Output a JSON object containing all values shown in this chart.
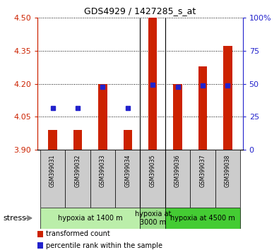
{
  "title": "GDS4929 / 1427285_s_at",
  "samples": [
    "GSM399031",
    "GSM399032",
    "GSM399033",
    "GSM399034",
    "GSM399035",
    "GSM399036",
    "GSM399037",
    "GSM399038"
  ],
  "bar_base": 3.9,
  "bar_tops": [
    3.99,
    3.99,
    4.2,
    3.99,
    4.5,
    4.2,
    4.28,
    4.37
  ],
  "blue_dot_values": [
    4.09,
    4.09,
    4.185,
    4.09,
    4.197,
    4.185,
    4.191,
    4.191
  ],
  "ylim": [
    3.9,
    4.5
  ],
  "yticks": [
    3.9,
    4.05,
    4.2,
    4.35,
    4.5
  ],
  "right_ylim": [
    0,
    100
  ],
  "right_yticks": [
    0,
    25,
    50,
    75,
    100
  ],
  "right_yticklabels": [
    "0",
    "25",
    "50",
    "75",
    "100%"
  ],
  "bar_color": "#cc2200",
  "dot_color": "#2222cc",
  "groups": [
    {
      "label": "hypoxia at 1400 m",
      "samples": [
        0,
        1,
        2,
        3
      ],
      "color": "#bbeeaa"
    },
    {
      "label": "hypoxia at\n3000 m",
      "samples": [
        4
      ],
      "color": "#99dd88"
    },
    {
      "label": "hypoxia at 4500 m",
      "samples": [
        5,
        6,
        7
      ],
      "color": "#44cc33"
    }
  ],
  "stress_label": "stress",
  "legend_items": [
    {
      "color": "#cc2200",
      "label": "transformed count"
    },
    {
      "color": "#2222cc",
      "label": "percentile rank within the sample"
    }
  ],
  "bg_color": "#ffffff",
  "tick_color_left": "#cc2200",
  "tick_color_right": "#2222cc",
  "sample_cell_color": "#cccccc",
  "bar_width": 0.35
}
